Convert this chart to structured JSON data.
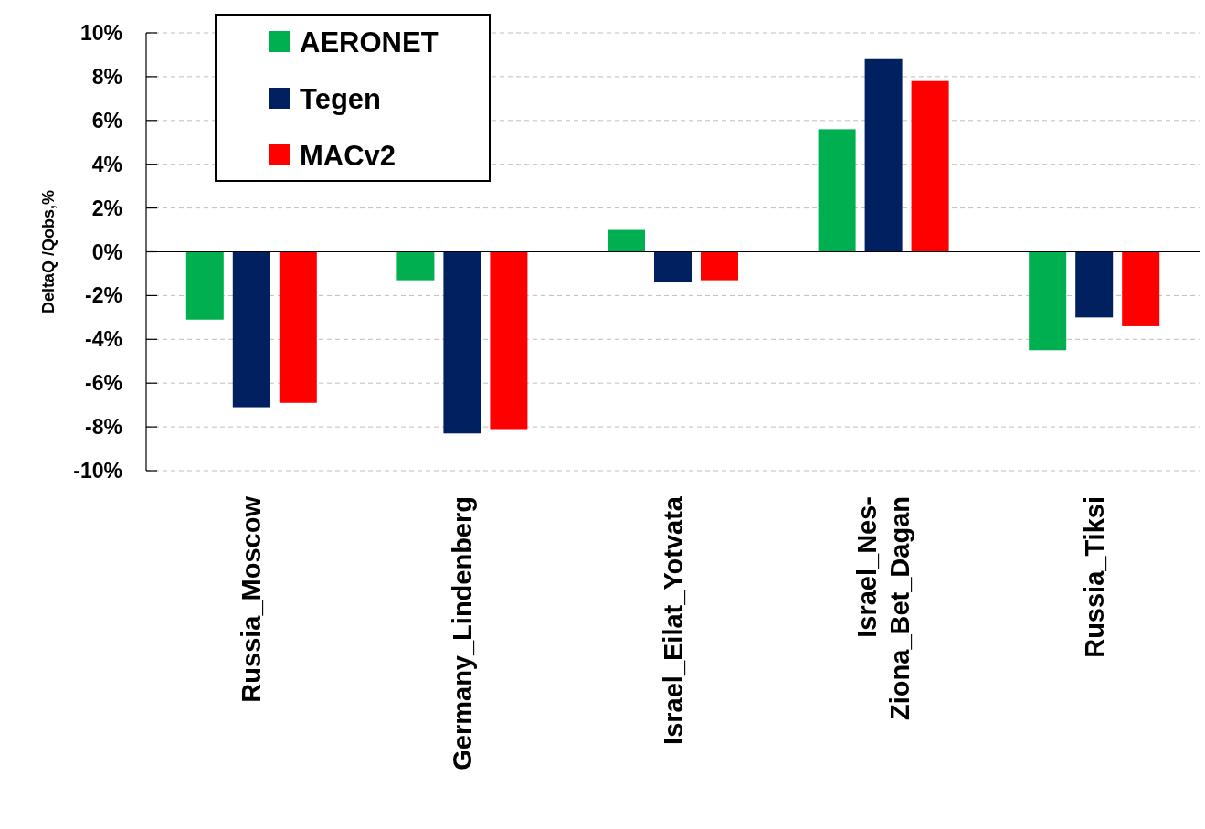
{
  "chart_data": {
    "type": "bar",
    "ylabel": "DeltaQ /Qobs,%",
    "categories": [
      "Russia_Moscow",
      "Germany_Lindenberg",
      "Israel_Eilat_Yotvata",
      "Israel_Nes-Ziona_Bet_Dagan",
      "Russia_Tiksi"
    ],
    "series": [
      {
        "name": "AERONET",
        "color": "#00b050",
        "values": [
          -3.1,
          -1.3,
          1.0,
          5.6,
          -4.5
        ]
      },
      {
        "name": "Tegen",
        "color": "#002060",
        "values": [
          -7.1,
          -8.3,
          -1.4,
          8.8,
          -3.0
        ]
      },
      {
        "name": "MACv2",
        "color": "#ff0000",
        "values": [
          -6.9,
          -8.1,
          -1.3,
          7.8,
          -3.4
        ]
      }
    ],
    "ylim": [
      -10,
      10
    ],
    "yticks": [
      {
        "value": -10,
        "label": "-10%"
      },
      {
        "value": -8,
        "label": "-8%"
      },
      {
        "value": -6,
        "label": "-6%"
      },
      {
        "value": -4,
        "label": "-4%"
      },
      {
        "value": -2,
        "label": "-2%"
      },
      {
        "value": 0,
        "label": "0%"
      },
      {
        "value": 2,
        "label": "2%"
      },
      {
        "value": 4,
        "label": "4%"
      },
      {
        "value": 6,
        "label": "6%"
      },
      {
        "value": 8,
        "label": "8%"
      },
      {
        "value": 10,
        "label": "10%"
      }
    ],
    "grid": "y",
    "legend": "top left"
  }
}
